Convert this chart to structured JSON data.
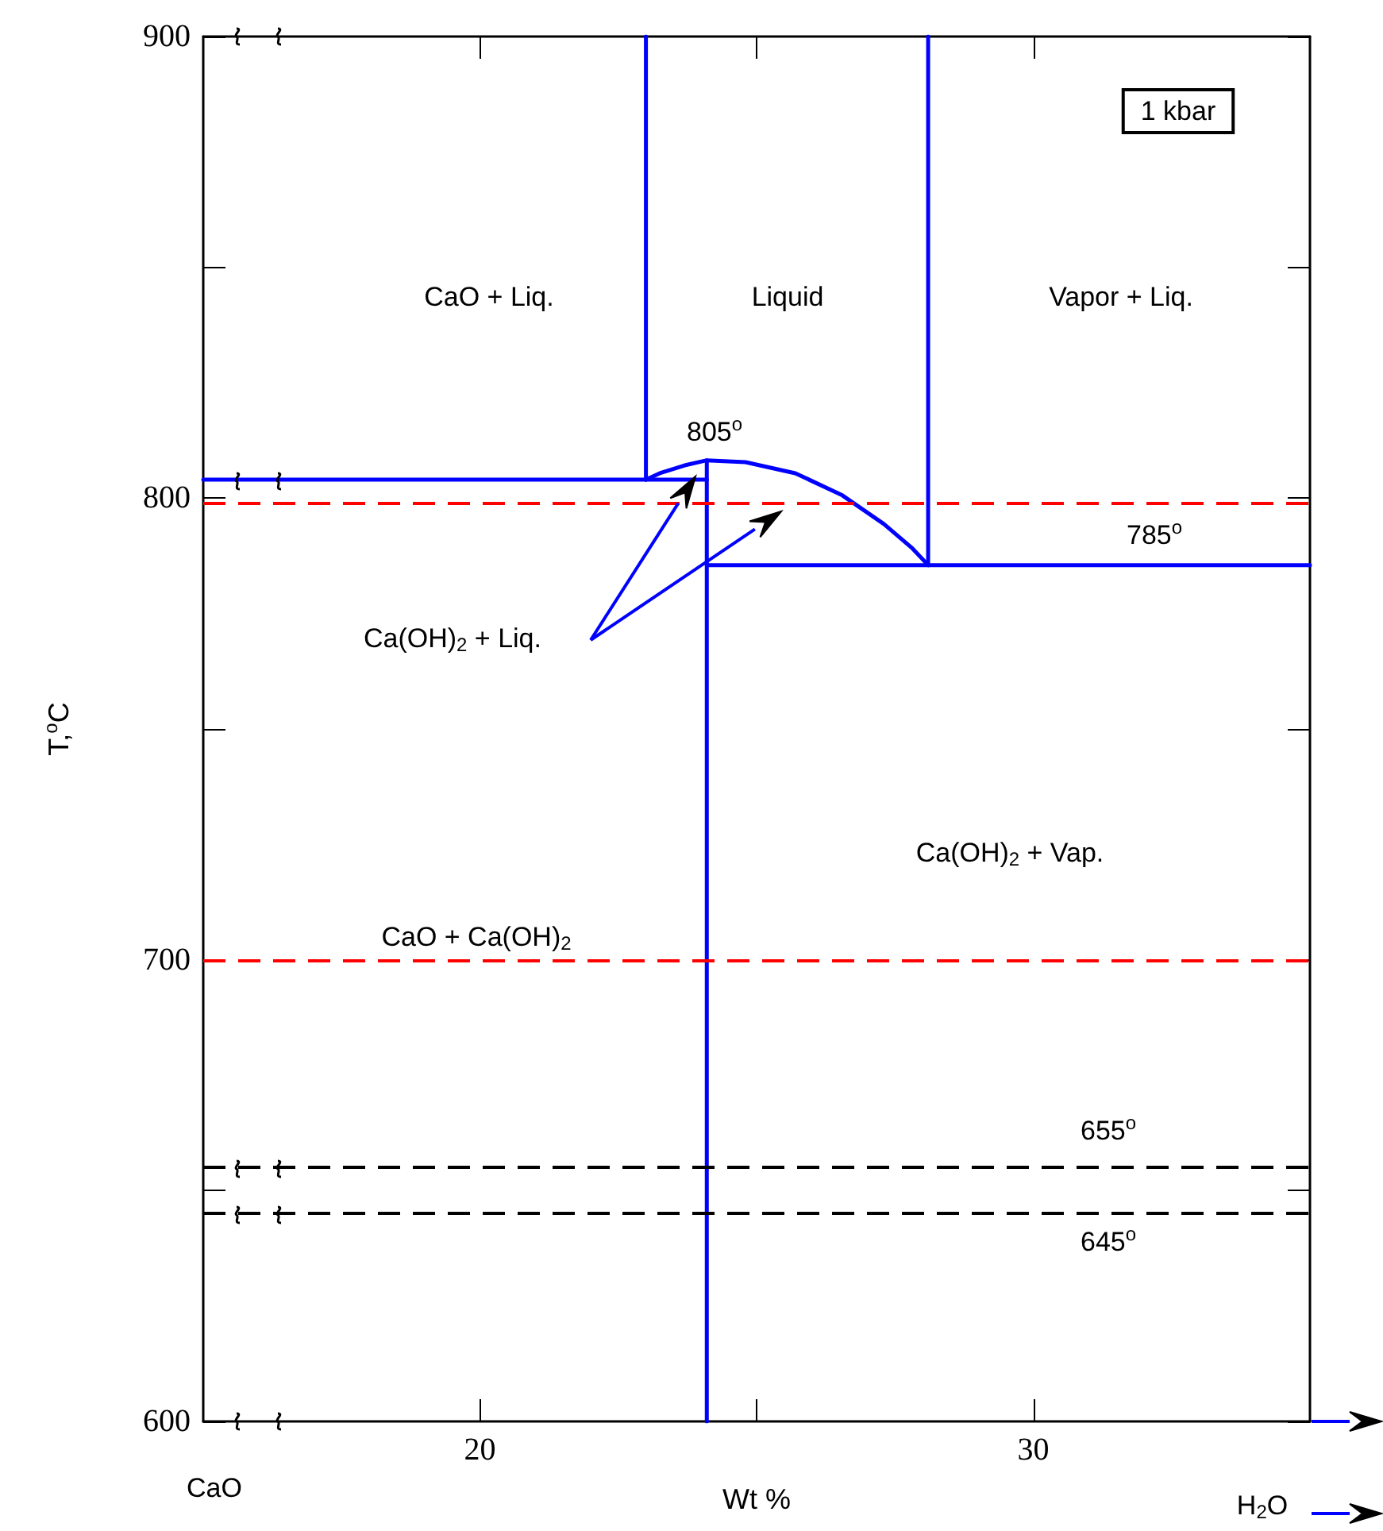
{
  "chart_data": {
    "type": "line",
    "xlabel": "Wt %",
    "ylabel": "T,$^{o}$C",
    "xlim": [
      15,
      35
    ],
    "xticks": [
      20,
      {
        "value": 25,
        "label": null
      },
      30
    ],
    "ylim": [
      600,
      900
    ],
    "yticks": [
      600,
      {
        "value": 650,
        "label": null
      },
      700,
      {
        "value": 750,
        "label": null
      },
      800,
      {
        "value": 850,
        "label": null
      },
      900
    ],
    "grid": false,
    "marker": "none",
    "line_style": "solid",
    "series": [
      {
        "color": "#0000ff",
        "x": [
          15,
          24.1
        ],
        "values": [
          804,
          804
        ]
      },
      {
        "color": "#0000ff",
        "x": [
          23.0,
          23.0
        ],
        "values": [
          900,
          804
        ]
      },
      {
        "color": "#0000ff",
        "x": [
          23.0,
          23.25,
          23.7,
          24.1,
          24.8,
          25.7,
          26.55,
          27.3,
          27.8,
          28.1
        ],
        "values": [
          804,
          805.4,
          807.1,
          808.2,
          807.8,
          805.4,
          800.6,
          794.4,
          789.3,
          785.5
        ]
      },
      {
        "color": "#0000ff",
        "x": [
          28.1,
          28.1
        ],
        "values": [
          900,
          785.5
        ]
      },
      {
        "color": "#0000ff",
        "x": [
          24.1,
          35
        ],
        "values": [
          785.5,
          785.5
        ]
      },
      {
        "color": "#0000ff",
        "x": [
          24.1,
          24.1
        ],
        "values": [
          808.2,
          600
        ]
      }
    ],
    "ref_lines": [
      {
        "axis": "y",
        "value": 799,
        "color": "#ff0000",
        "line_style": "dashed"
      },
      {
        "axis": "y",
        "value": 700,
        "color": "#ff0000",
        "line_style": "dashed"
      },
      {
        "axis": "y",
        "value": 655,
        "color": "#000000",
        "line_style": "dashed"
      },
      {
        "axis": "y",
        "value": 645,
        "color": "#000000",
        "line_style": "dashed"
      }
    ],
    "annotations": [
      "CaO + Liq.",
      "Liquid",
      "Vapor + Liq.",
      "805$^{o}$",
      "785$^{o}$",
      "Ca(OH)$_{2}$ + Liq.",
      "Ca(OH)$_{2}$ + Vap.",
      "CaO + Ca(OH)$_{2}$",
      "655$^{o}$",
      "645$^{o}$",
      "1 kbar",
      "CaO",
      "H$_{2}$O"
    ]
  }
}
